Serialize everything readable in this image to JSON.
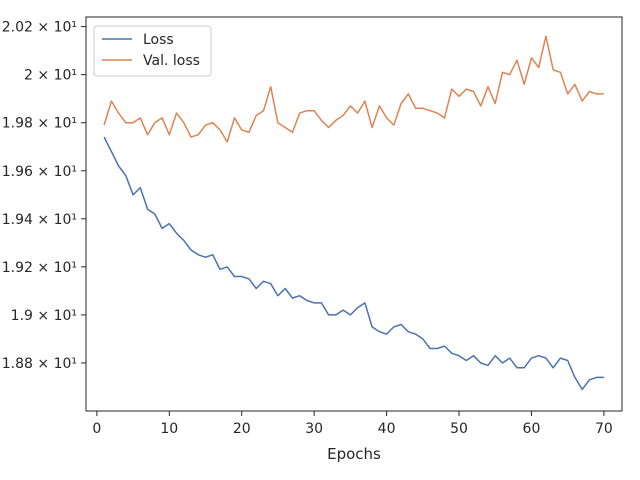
{
  "chart_data": {
    "type": "line",
    "xlabel": "Epochs",
    "ylabel": "",
    "title": "",
    "xlim": [
      -1.5,
      72.5
    ],
    "ylim": [
      18.6,
      20.24
    ],
    "x_ticks": [
      0,
      10,
      20,
      30,
      40,
      50,
      60,
      70
    ],
    "x_tick_labels": [
      "0",
      "10",
      "20",
      "30",
      "40",
      "50",
      "60",
      "70"
    ],
    "y_ticks": [
      18.8,
      19.0,
      19.2,
      19.4,
      19.6,
      19.8,
      20.0,
      20.2
    ],
    "y_tick_labels": [
      "1.88 × 10¹",
      "1.9 × 10¹",
      "1.92 × 10¹",
      "1.94 × 10¹",
      "1.96 × 10¹",
      "1.98 × 10¹",
      "2 × 10¹",
      "2.02 × 10¹"
    ],
    "grid": false,
    "legend_position": "top-left",
    "x": [
      1,
      2,
      3,
      4,
      5,
      6,
      7,
      8,
      9,
      10,
      11,
      12,
      13,
      14,
      15,
      16,
      17,
      18,
      19,
      20,
      21,
      22,
      23,
      24,
      25,
      26,
      27,
      28,
      29,
      30,
      31,
      32,
      33,
      34,
      35,
      36,
      37,
      38,
      39,
      40,
      41,
      42,
      43,
      44,
      45,
      46,
      47,
      48,
      49,
      50,
      51,
      52,
      53,
      54,
      55,
      56,
      57,
      58,
      59,
      60,
      61,
      62,
      63,
      64,
      65,
      66,
      67,
      68,
      69,
      70
    ],
    "series": [
      {
        "name": "Loss",
        "color": "#4c72b0",
        "values": [
          19.74,
          19.68,
          19.62,
          19.58,
          19.5,
          19.53,
          19.44,
          19.42,
          19.36,
          19.38,
          19.34,
          19.31,
          19.27,
          19.25,
          19.24,
          19.25,
          19.19,
          19.2,
          19.16,
          19.16,
          19.15,
          19.11,
          19.14,
          19.13,
          19.08,
          19.11,
          19.07,
          19.08,
          19.06,
          19.05,
          19.05,
          19.0,
          19.0,
          19.02,
          19.0,
          19.03,
          19.05,
          18.95,
          18.93,
          18.92,
          18.95,
          18.96,
          18.93,
          18.92,
          18.9,
          18.86,
          18.86,
          18.87,
          18.84,
          18.83,
          18.81,
          18.83,
          18.8,
          18.79,
          18.83,
          18.8,
          18.82,
          18.78,
          18.78,
          18.82,
          18.83,
          18.82,
          18.78,
          18.82,
          18.81,
          18.74,
          18.69,
          18.73,
          18.74,
          18.74
        ]
      },
      {
        "name": "Val. loss",
        "color": "#dd8452",
        "values": [
          19.79,
          19.89,
          19.84,
          19.8,
          19.8,
          19.82,
          19.75,
          19.8,
          19.82,
          19.75,
          19.84,
          19.8,
          19.74,
          19.75,
          19.79,
          19.8,
          19.77,
          19.72,
          19.82,
          19.77,
          19.76,
          19.83,
          19.85,
          19.95,
          19.8,
          19.78,
          19.76,
          19.84,
          19.85,
          19.85,
          19.81,
          19.78,
          19.81,
          19.83,
          19.87,
          19.84,
          19.89,
          19.78,
          19.87,
          19.82,
          19.79,
          19.88,
          19.92,
          19.86,
          19.86,
          19.85,
          19.84,
          19.82,
          19.94,
          19.91,
          19.94,
          19.93,
          19.87,
          19.95,
          19.88,
          20.01,
          20.0,
          20.06,
          19.96,
          20.07,
          20.03,
          20.16,
          20.02,
          20.01,
          19.92,
          19.96,
          19.89,
          19.93,
          19.92,
          19.92
        ]
      }
    ]
  }
}
